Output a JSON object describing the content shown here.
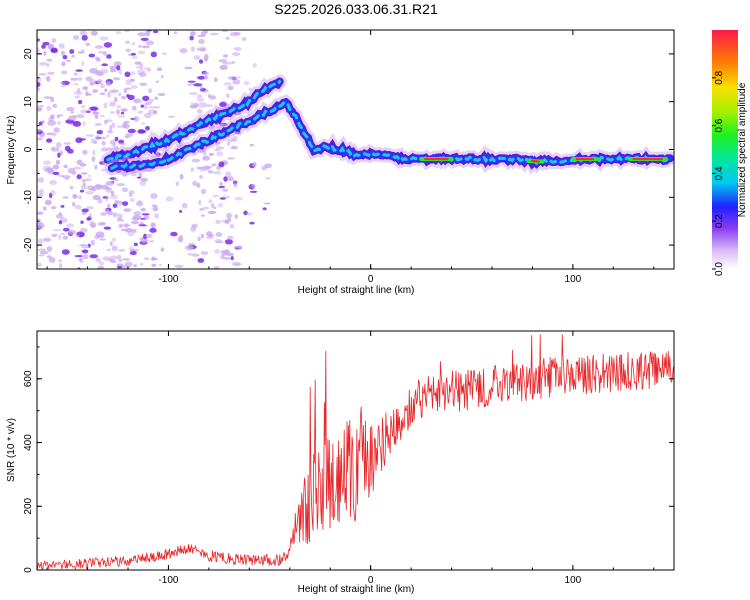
{
  "title": "S225.2026.033.06.31.R21",
  "colors": {
    "snr_line": "#e8262a",
    "axis": "#000000",
    "scatter": "#c9a6f0",
    "ridge_core": "#1fc7ef"
  },
  "chart_data": [
    {
      "type": "heatmap",
      "name": "spectrogram",
      "xlabel": "Height of straight line (km)",
      "ylabel": "Frequency (Hz)",
      "xlim": [
        -165,
        150
      ],
      "ylim": [
        -25,
        25
      ],
      "xticks": [
        -100,
        0,
        100
      ],
      "yticks": [
        -20,
        -10,
        0,
        10,
        20
      ],
      "ridge": {
        "x": [
          -128,
          -120,
          -110,
          -100,
          -90,
          -80,
          -70,
          -60,
          -50,
          -42,
          -36,
          -32,
          -28,
          -22,
          -15,
          -8,
          0,
          10,
          20,
          30,
          40,
          50,
          60,
          70,
          80,
          90,
          100,
          110,
          120,
          130,
          140,
          148
        ],
        "y": [
          -4,
          -3.5,
          -3,
          -2,
          0,
          2,
          4,
          6,
          8,
          10,
          6,
          3,
          0,
          0.5,
          0,
          -1,
          -1,
          -1.5,
          -2,
          -2,
          -2,
          -2,
          -2,
          -2,
          -2.5,
          -2.5,
          -2,
          -2,
          -2,
          -2,
          -2,
          -2
        ]
      },
      "ridge_secondary": {
        "x": [
          -130,
          -120,
          -110,
          -100,
          -90,
          -80,
          -70,
          -60,
          -55,
          -50,
          -45
        ],
        "y": [
          -2,
          -1,
          0.5,
          2,
          4,
          6,
          8,
          10,
          12,
          13,
          14
        ]
      },
      "colorbar": {
        "label": "Normalized spectral amplitude",
        "range": [
          0,
          1
        ],
        "ticks": [
          0.0,
          0.2,
          0.4,
          0.6,
          0.8
        ],
        "tick_labels": [
          "0.0",
          "0.2",
          "0.4",
          "0.6",
          "0.8"
        ]
      }
    },
    {
      "type": "line",
      "name": "snr",
      "xlabel": "Height of straight line (km)",
      "ylabel": "SNR (10 * v/v)",
      "xlim": [
        -165,
        150
      ],
      "ylim": [
        0,
        750
      ],
      "xticks": [
        -100,
        0,
        100
      ],
      "yticks": [
        0,
        200,
        400,
        600
      ],
      "envelope": {
        "x": [
          -165,
          -140,
          -120,
          -100,
          -90,
          -80,
          -60,
          -45,
          -40,
          -35,
          -30,
          -20,
          -10,
          0,
          10,
          20,
          30,
          50,
          70,
          90,
          110,
          130,
          150
        ],
        "y": [
          15,
          20,
          30,
          50,
          70,
          45,
          30,
          30,
          60,
          140,
          220,
          270,
          310,
          350,
          430,
          520,
          545,
          570,
          590,
          605,
          615,
          625,
          630
        ]
      },
      "noise_amplitude": {
        "x": [
          -165,
          -40,
          -35,
          -10,
          10,
          150
        ],
        "y": [
          15,
          20,
          120,
          180,
          70,
          60
        ]
      }
    }
  ]
}
